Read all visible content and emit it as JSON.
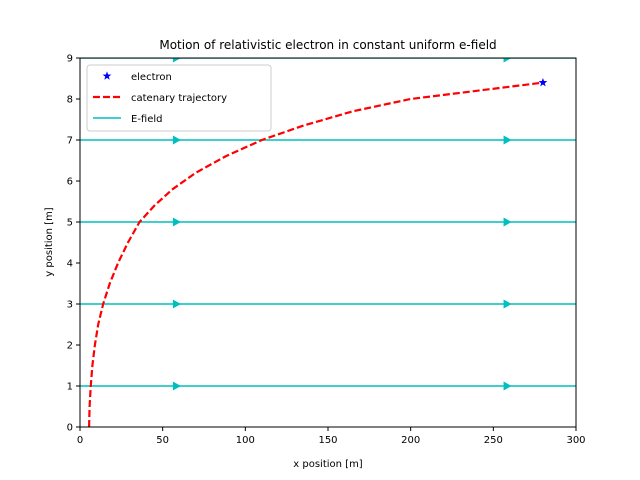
{
  "chart_data": {
    "type": "line",
    "title": "Motion of relativistic electron in constant uniform e-field",
    "xlabel": "x position [m]",
    "ylabel": "y position [m]",
    "xlim": [
      0,
      300
    ],
    "ylim": [
      0,
      9
    ],
    "xticks": [
      0,
      50,
      100,
      150,
      200,
      250,
      300
    ],
    "yticks": [
      0,
      1,
      2,
      3,
      4,
      5,
      6,
      7,
      8,
      9
    ],
    "grid": false,
    "legend_position": "top-left",
    "series": [
      {
        "name": "electron",
        "style": "marker",
        "marker": "star",
        "color": "#0000ff",
        "x": [
          280
        ],
        "y": [
          8.4
        ]
      },
      {
        "name": "catenary trajectory",
        "style": "dashed",
        "color": "#ff0000",
        "x": [
          5.5,
          5.8,
          6.5,
          7.5,
          9.0,
          11.0,
          14.0,
          18.0,
          23.0,
          29.0,
          36.0,
          45.0,
          56.0,
          70.0,
          88.0,
          110.0,
          135.0,
          165.0,
          200.0,
          240.0,
          280.0
        ],
        "y": [
          0.0,
          0.5,
          1.0,
          1.5,
          2.0,
          2.5,
          3.0,
          3.5,
          4.0,
          4.5,
          5.0,
          5.4,
          5.8,
          6.2,
          6.6,
          7.0,
          7.35,
          7.7,
          8.0,
          8.2,
          8.4
        ]
      },
      {
        "name": "E-field",
        "style": "solid",
        "color": "#00bfbf",
        "lines_y": [
          1,
          3,
          5,
          7,
          9
        ],
        "arrows_x": [
          58,
          258
        ]
      }
    ]
  }
}
